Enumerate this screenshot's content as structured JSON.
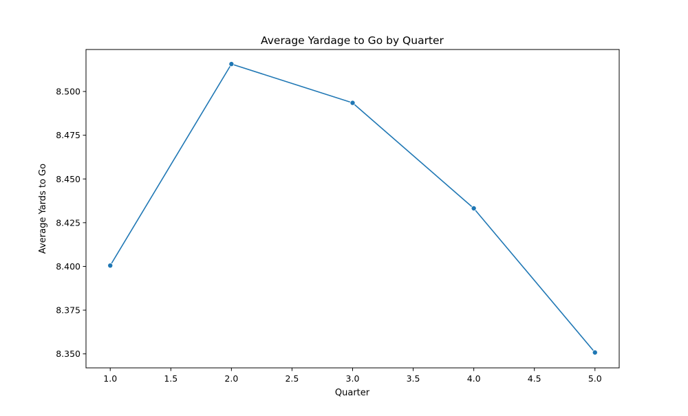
{
  "chart_data": {
    "type": "line",
    "title": "Average Yardage to Go by Quarter",
    "xlabel": "Quarter",
    "ylabel": "Average Yards to Go",
    "xlim": [
      0.8,
      5.2
    ],
    "ylim": [
      8.342,
      8.524
    ],
    "x_ticks": [
      "1.0",
      "1.5",
      "2.0",
      "2.5",
      "3.0",
      "3.5",
      "4.0",
      "4.5",
      "5.0"
    ],
    "y_ticks": [
      "8.350",
      "8.375",
      "8.400",
      "8.425",
      "8.450",
      "8.475",
      "8.500"
    ],
    "grid": false,
    "legend": "none",
    "line_color": "#1f77b4",
    "series": [
      {
        "x": [
          1.0,
          2.0,
          3.0,
          4.0,
          5.0
        ],
        "values": [
          8.4005,
          8.5157,
          8.4935,
          8.4332,
          8.3508
        ]
      }
    ]
  }
}
